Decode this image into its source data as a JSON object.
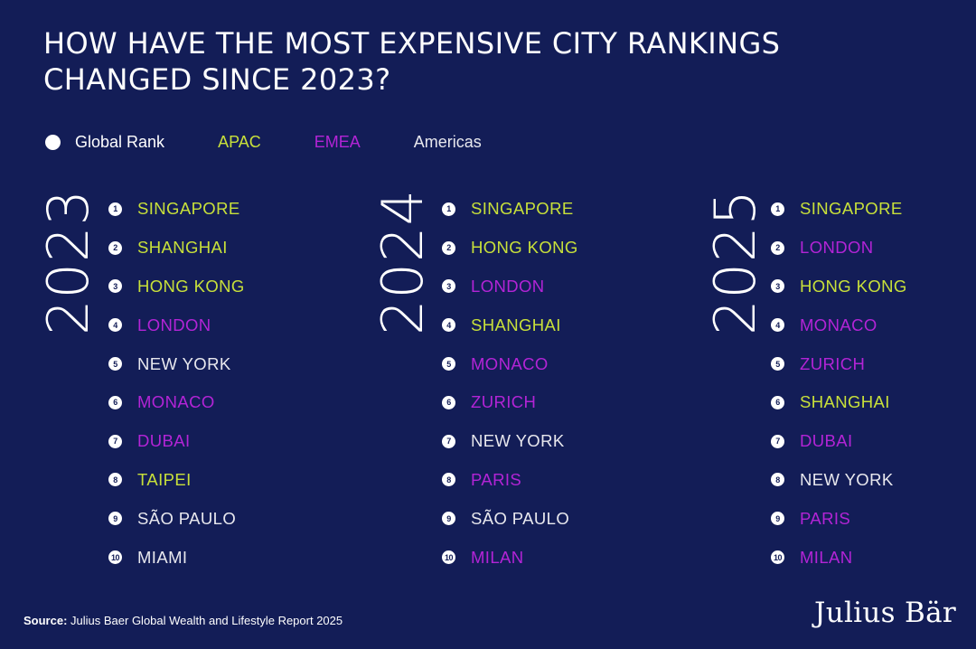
{
  "title": "HOW HAVE THE MOST EXPENSIVE CITY RANKINGS CHANGED SINCE 2023?",
  "legend": {
    "global_rank": "Global Rank",
    "apac": "APAC",
    "emea": "EMEA",
    "americas": "Americas"
  },
  "colors": {
    "background": "#131d57",
    "apac": "#c8e03a",
    "emea": "#b324d6",
    "americas": "#e8e8ee"
  },
  "rankings": [
    {
      "year": "2023",
      "cities": [
        {
          "rank": "1",
          "name": "SINGAPORE",
          "region": "apac"
        },
        {
          "rank": "2",
          "name": "SHANGHAI",
          "region": "apac"
        },
        {
          "rank": "3",
          "name": "HONG KONG",
          "region": "apac"
        },
        {
          "rank": "4",
          "name": "LONDON",
          "region": "emea"
        },
        {
          "rank": "5",
          "name": "NEW YORK",
          "region": "americas"
        },
        {
          "rank": "6",
          "name": "MONACO",
          "region": "emea"
        },
        {
          "rank": "7",
          "name": "DUBAI",
          "region": "emea"
        },
        {
          "rank": "8",
          "name": "TAIPEI",
          "region": "apac"
        },
        {
          "rank": "9",
          "name": "SÃO PAULO",
          "region": "americas"
        },
        {
          "rank": "10",
          "name": "MIAMI",
          "region": "americas"
        }
      ]
    },
    {
      "year": "2024",
      "cities": [
        {
          "rank": "1",
          "name": "SINGAPORE",
          "region": "apac"
        },
        {
          "rank": "2",
          "name": "HONG KONG",
          "region": "apac"
        },
        {
          "rank": "3",
          "name": "LONDON",
          "region": "emea"
        },
        {
          "rank": "4",
          "name": "SHANGHAI",
          "region": "apac"
        },
        {
          "rank": "5",
          "name": "MONACO",
          "region": "emea"
        },
        {
          "rank": "6",
          "name": "ZURICH",
          "region": "emea"
        },
        {
          "rank": "7",
          "name": "NEW YORK",
          "region": "americas"
        },
        {
          "rank": "8",
          "name": "PARIS",
          "region": "emea"
        },
        {
          "rank": "9",
          "name": "SÃO PAULO",
          "region": "americas"
        },
        {
          "rank": "10",
          "name": "MILAN",
          "region": "emea"
        }
      ]
    },
    {
      "year": "2025",
      "cities": [
        {
          "rank": "1",
          "name": "SINGAPORE",
          "region": "apac"
        },
        {
          "rank": "2",
          "name": "LONDON",
          "region": "emea"
        },
        {
          "rank": "3",
          "name": "HONG KONG",
          "region": "apac"
        },
        {
          "rank": "4",
          "name": "MONACO",
          "region": "emea"
        },
        {
          "rank": "5",
          "name": "ZURICH",
          "region": "emea"
        },
        {
          "rank": "6",
          "name": "SHANGHAI",
          "region": "apac"
        },
        {
          "rank": "7",
          "name": "DUBAI",
          "region": "emea"
        },
        {
          "rank": "8",
          "name": "NEW YORK",
          "region": "americas"
        },
        {
          "rank": "9",
          "name": "PARIS",
          "region": "emea"
        },
        {
          "rank": "10",
          "name": "MILAN",
          "region": "emea"
        }
      ]
    }
  ],
  "footer": {
    "source_label": "Source:",
    "source_text": " Julius Baer Global Wealth and Lifestyle Report 2025",
    "logo": "Julius Bär"
  }
}
